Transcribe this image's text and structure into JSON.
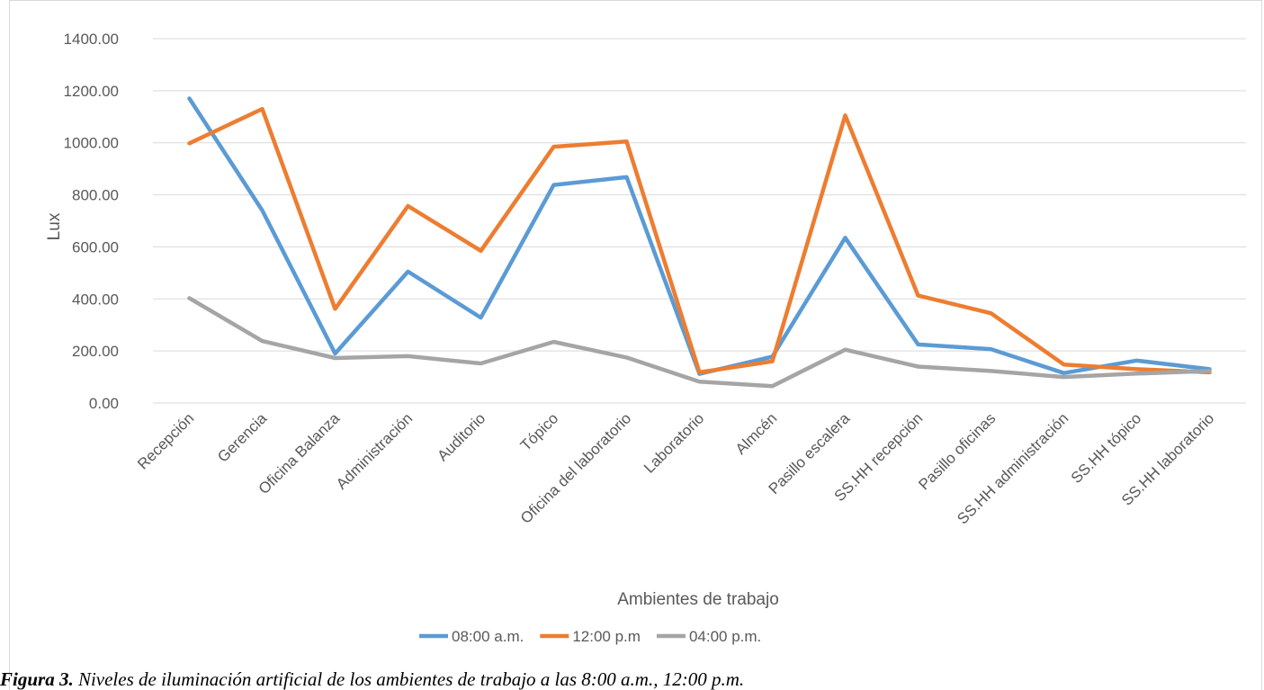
{
  "chart_data": {
    "type": "line",
    "title": "",
    "xlabel": "Ambientes de trabajo",
    "ylabel": "Lux",
    "ylim": [
      0,
      1400
    ],
    "yticks": [
      "0.00",
      "200.00",
      "400.00",
      "600.00",
      "800.00",
      "1000.00",
      "1200.00",
      "1400.00"
    ],
    "grid": true,
    "legend": "bottom",
    "categories": [
      "Recepción",
      "Gerencia",
      "Oficina Balanza",
      "Administración",
      "Auditorio",
      "Tópico",
      "Oficina del laboratorio",
      "Laboratorio",
      "Almcén",
      "Pasillo escalera",
      "SS.HH recepción",
      "Pasillo oficinas",
      "SS.HH administración",
      "SS.HH tópico",
      "SS.HH laboratorio"
    ],
    "series": [
      {
        "name": "08:00 a.m.",
        "color": "#5b9bd5",
        "values": [
          1170,
          740,
          190,
          505,
          328,
          838,
          868,
          112,
          178,
          635,
          225,
          207,
          115,
          163,
          130
        ]
      },
      {
        "name": "12:00 p.m",
        "color": "#ed7d31",
        "values": [
          998,
          1130,
          362,
          757,
          585,
          985,
          1005,
          118,
          160,
          1105,
          413,
          345,
          148,
          130,
          118
        ]
      },
      {
        "name": "04:00 p.m.",
        "color": "#a5a5a5",
        "values": [
          403,
          238,
          173,
          180,
          152,
          235,
          175,
          82,
          65,
          205,
          140,
          123,
          100,
          113,
          123
        ]
      }
    ]
  },
  "caption": {
    "label": "Figura 3.",
    "text": "Niveles de iluminación artificial de los ambientes de trabajo a las 8:00 a.m., 12:00 p.m."
  }
}
